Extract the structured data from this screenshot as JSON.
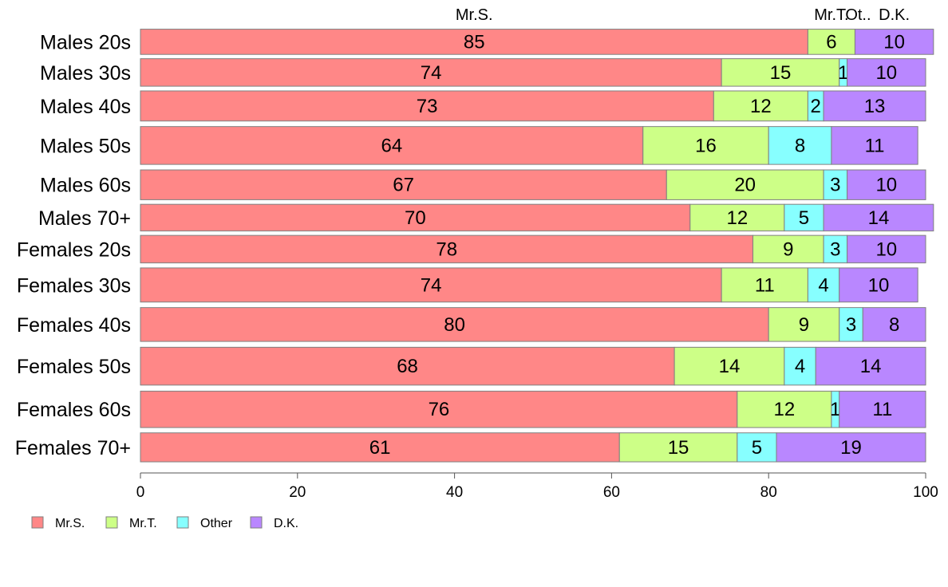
{
  "chart_data": {
    "type": "bar",
    "orientation": "horizontal",
    "stacked": true,
    "categories": [
      "Males 20s",
      "Males 30s",
      "Males 40s",
      "Males 50s",
      "Males 60s",
      "Males 70+",
      "Females 20s",
      "Females 30s",
      "Females 40s",
      "Females 50s",
      "Females 60s",
      "Females 70+"
    ],
    "series": [
      {
        "name": "Mr.S.",
        "color": "#ff8787",
        "values": [
          85,
          74,
          73,
          64,
          67,
          70,
          78,
          74,
          80,
          68,
          76,
          61
        ]
      },
      {
        "name": "Mr.T.",
        "color": "#cdff87",
        "values": [
          6,
          15,
          12,
          16,
          20,
          12,
          9,
          11,
          9,
          14,
          12,
          15
        ]
      },
      {
        "name": "Other",
        "color": "#87ffff",
        "values": [
          0,
          1,
          2,
          8,
          3,
          5,
          3,
          4,
          3,
          4,
          1,
          5
        ]
      },
      {
        "name": "D.K.",
        "color": "#b987ff",
        "values": [
          10,
          10,
          13,
          11,
          10,
          14,
          10,
          10,
          8,
          14,
          11,
          19
        ]
      }
    ],
    "top_labels": [
      "Mr.S.",
      "Mr.T.",
      "Ot..",
      "D.K."
    ],
    "xlim": [
      0,
      100
    ],
    "xticks": [
      0,
      20,
      40,
      60,
      80,
      100
    ],
    "row_weights": [
      88,
      96,
      105,
      132,
      104,
      93,
      96,
      119,
      118,
      132,
      127,
      101
    ],
    "legend_position": "bottom-left",
    "title": "",
    "xlabel": "",
    "ylabel": ""
  }
}
